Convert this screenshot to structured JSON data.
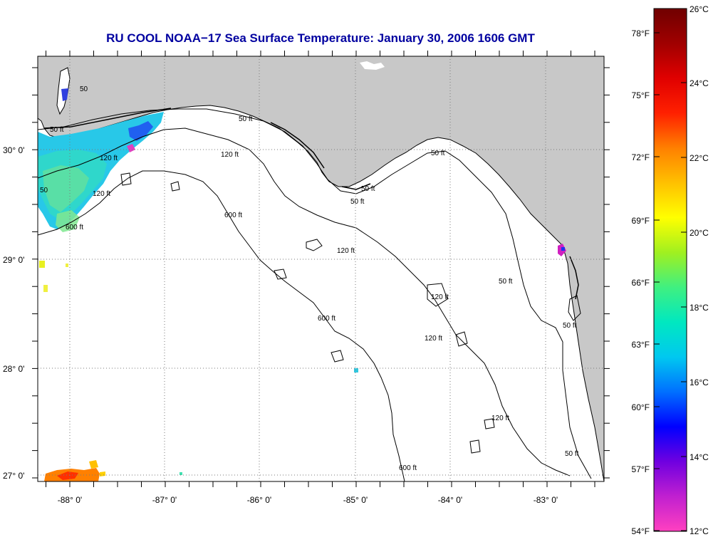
{
  "title": "RU COOL  NOAA−17  Sea Surface Temperature:  January 30, 2006 1606 GMT",
  "map": {
    "x_labels": [
      "-88° 0'",
      "-87° 0'",
      "-86° 0'",
      "-85° 0'",
      "-84° 0'",
      "-83° 0'"
    ],
    "y_labels": [
      "30° 0'",
      "29° 0'",
      "28° 0'",
      "27° 0'"
    ],
    "contour_labels": [
      {
        "text": "50 ft"
      },
      {
        "text": "50 ft"
      },
      {
        "text": "120 ft"
      },
      {
        "text": "120 ft"
      },
      {
        "text": "50 ft"
      },
      {
        "text": "50 ft"
      },
      {
        "text": "50 ft"
      },
      {
        "text": "50"
      },
      {
        "text": "120 ft"
      },
      {
        "text": "600 ft"
      },
      {
        "text": "600 ft"
      },
      {
        "text": "120 ft"
      },
      {
        "text": "120 ft"
      },
      {
        "text": "120 ft"
      },
      {
        "text": "600 ft"
      },
      {
        "text": "50 ft"
      },
      {
        "text": "50 ft"
      },
      {
        "text": "120 ft"
      },
      {
        "text": "50 ft"
      },
      {
        "text": "600 ft"
      },
      {
        "text": "50"
      }
    ],
    "land_color": "#c8c8c8",
    "water_color": "#ffffff"
  },
  "colorbar": {
    "fahrenheit": [
      "78°F",
      "75°F",
      "72°F",
      "69°F",
      "66°F",
      "63°F",
      "60°F",
      "57°F",
      "54°F"
    ],
    "celsius": [
      "26°C",
      "24°C",
      "22°C",
      "20°C",
      "18°C",
      "16°C",
      "14°C",
      "12°C"
    ],
    "stops": [
      "#ff40c0",
      "#c020d0",
      "#7000e0",
      "#0000ff",
      "#0070ff",
      "#00c8f0",
      "#00e8c0",
      "#40f080",
      "#a0f020",
      "#ffff00",
      "#ffc000",
      "#ff8000",
      "#ff2000",
      "#e00000",
      "#a00000",
      "#700000"
    ]
  }
}
